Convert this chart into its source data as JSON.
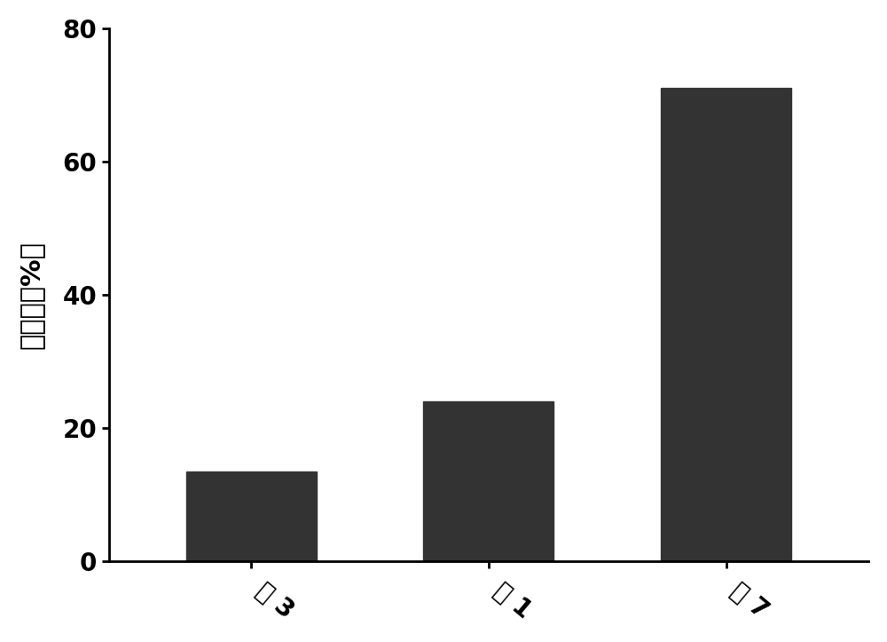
{
  "categories": [
    "肽 3",
    "肽 1",
    "肽 7"
  ],
  "values": [
    13.5,
    24.0,
    71.0
  ],
  "bar_color": "#333333",
  "ylabel_chars": [
    "增",
    "加",
    "量",
    "(%）"
  ],
  "ylabel_text": "增加量（%）",
  "ylim": [
    0,
    80
  ],
  "yticks": [
    0,
    20,
    40,
    60,
    80
  ],
  "background_color": "#ffffff",
  "bar_width": 0.55,
  "ylabel_fontsize": 22,
  "tick_fontsize": 20,
  "figsize": [
    10.0,
    7.23
  ]
}
